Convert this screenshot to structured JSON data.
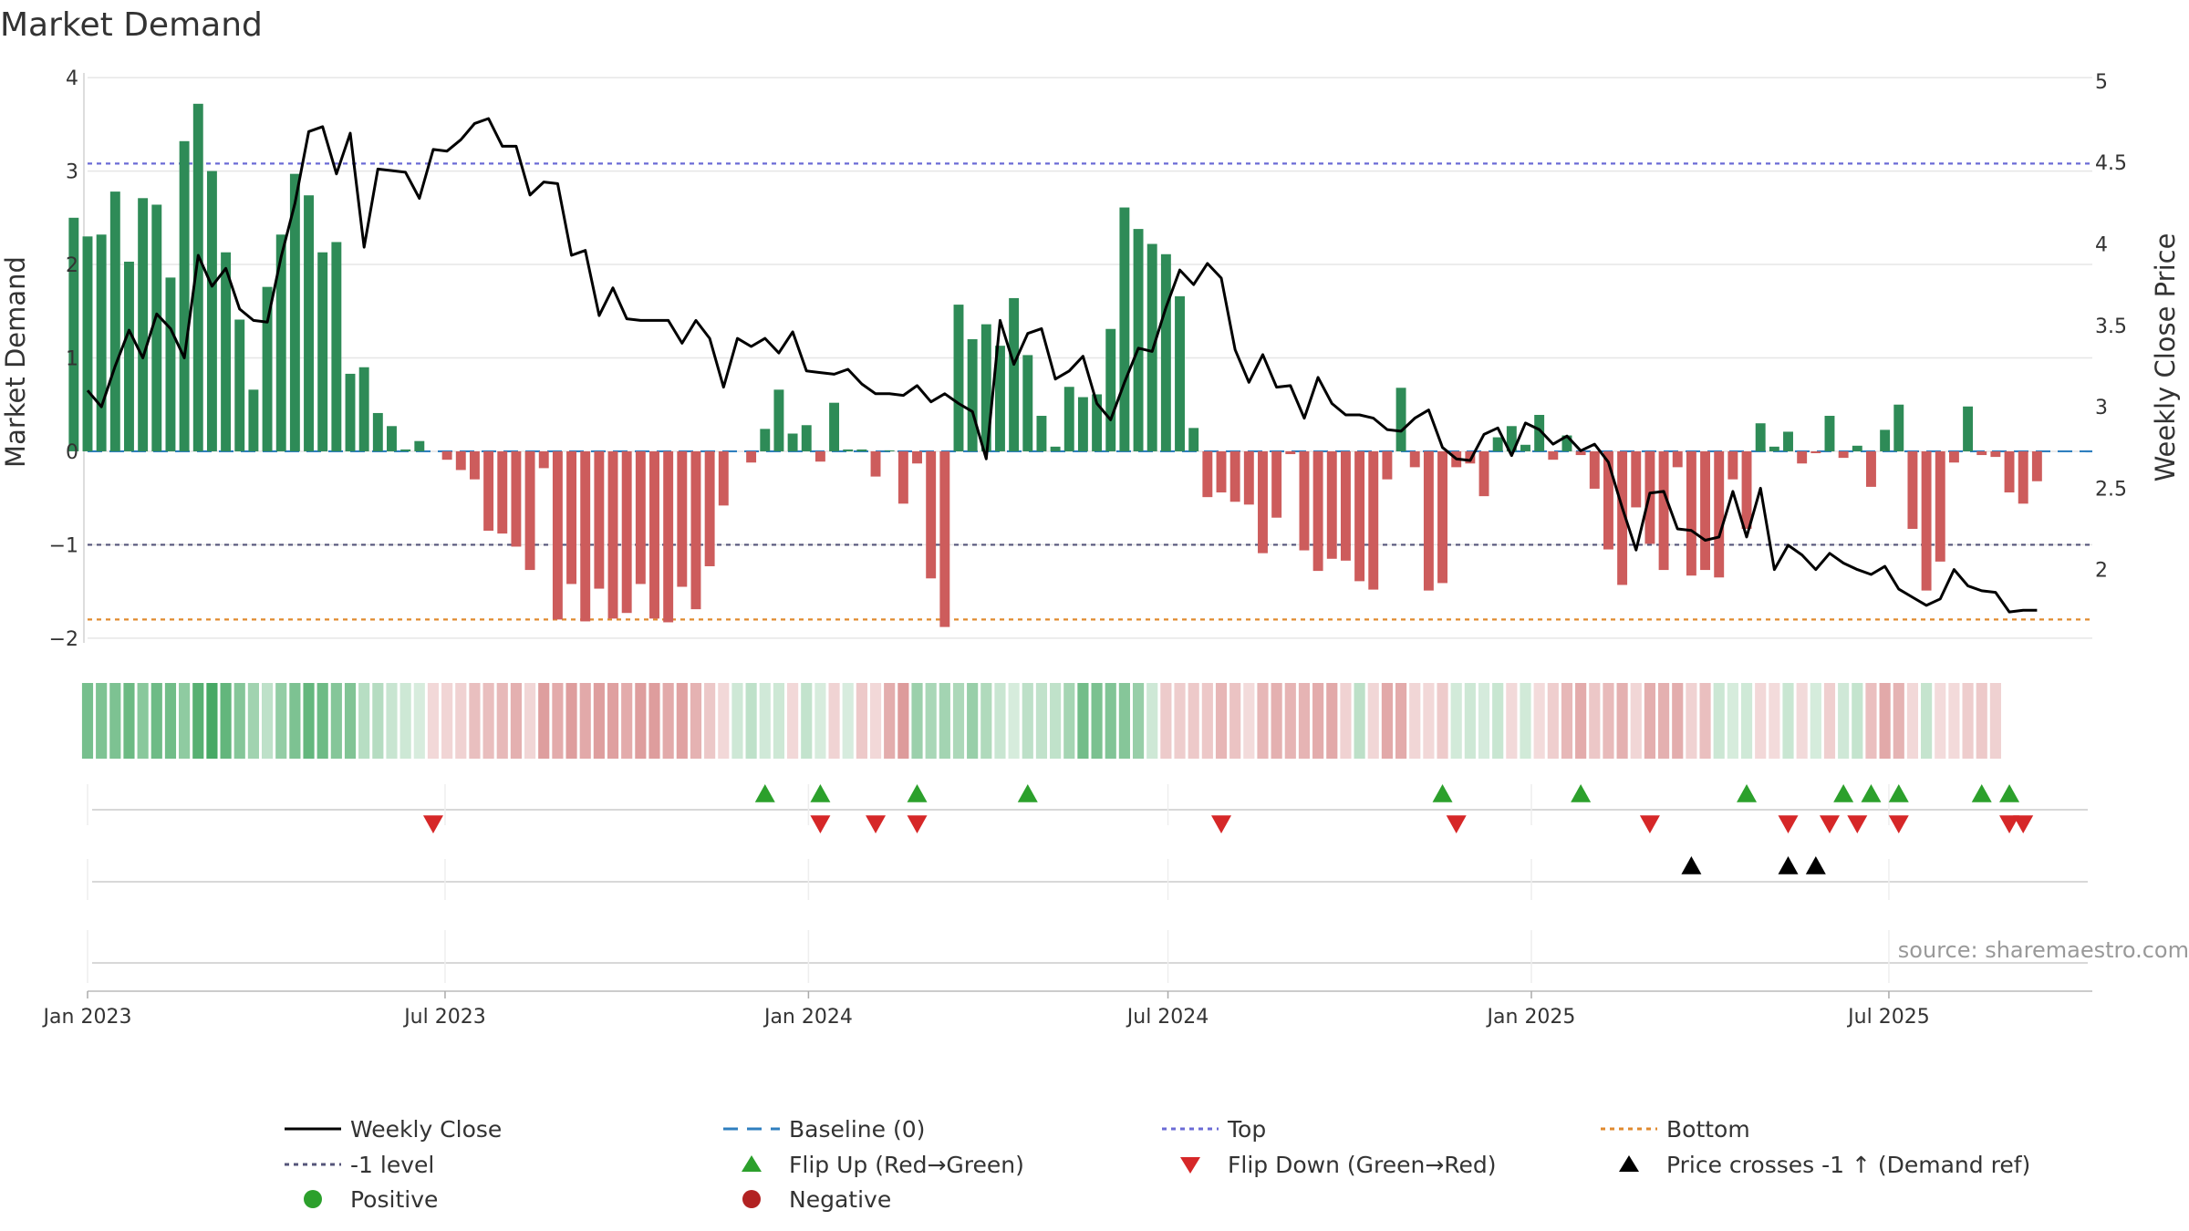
{
  "chart_data": {
    "type": "bar",
    "title": "Market Demand",
    "ylabel_left": "Market Demand",
    "ylabel_right": "Weekly Close Price",
    "left_yticks": [
      4,
      3,
      2,
      1,
      0,
      -1,
      -2
    ],
    "left_ytick_labels": [
      "4",
      "3",
      "2",
      "1",
      "0",
      "−1",
      "−2"
    ],
    "left_ylim": [
      -2.05,
      4.05
    ],
    "right_yticks": [
      5,
      4.5,
      4,
      3.5,
      3,
      2.5,
      2
    ],
    "right_ytick_labels": [
      "5",
      "4.5",
      "4",
      "3.5",
      "3",
      "2.5",
      "2"
    ],
    "right_ylim": [
      1.55,
      5.05
    ],
    "x_start": "2023-01-01",
    "x_end": "2025-10-12",
    "x_ticks": [
      {
        "date": "2023-01-01",
        "label": "Jan 2023"
      },
      {
        "date": "2023-07-01",
        "label": "Jul 2023"
      },
      {
        "date": "2024-01-01",
        "label": "Jan 2024"
      },
      {
        "date": "2024-07-01",
        "label": "Jul 2024"
      },
      {
        "date": "2025-01-01",
        "label": "Jan 2025"
      },
      {
        "date": "2025-07-01",
        "label": "Jul 2025"
      }
    ],
    "reference_lines": [
      {
        "name": "Top",
        "axis": "left",
        "value": 3.08,
        "color": "#6b6bd6"
      },
      {
        "name": "-1 level",
        "axis": "left",
        "value": -1.0,
        "color": "#55557a"
      },
      {
        "name": "Bottom",
        "axis": "left",
        "value": -1.8,
        "color": "#e08a2e"
      },
      {
        "name": "Baseline (0)",
        "axis": "left",
        "value": 0,
        "color": "#2f7fbf"
      }
    ],
    "demand_start": "2022-12-25",
    "demand_values": [
      2.5,
      2.3,
      2.32,
      2.78,
      2.03,
      2.71,
      2.64,
      1.86,
      3.32,
      3.72,
      3.0,
      2.13,
      1.41,
      0.66,
      1.76,
      2.32,
      2.97,
      2.74,
      2.13,
      2.24,
      0.83,
      0.9,
      0.41,
      0.27,
      0.02,
      0.11,
      0.0,
      -0.09,
      -0.2,
      -0.3,
      -0.85,
      -0.88,
      -1.02,
      -1.27,
      -0.18,
      -1.8,
      -1.42,
      -1.82,
      -1.47,
      -1.79,
      -1.73,
      -1.42,
      -1.79,
      -1.83,
      -1.45,
      -1.69,
      -1.23,
      -0.58,
      0.0,
      -0.12,
      0.24,
      0.66,
      0.19,
      0.28,
      -0.11,
      0.52,
      0.02,
      0.02,
      -0.27,
      0.01,
      -0.56,
      -0.13,
      -1.36,
      -1.88,
      1.57,
      1.2,
      1.36,
      1.13,
      1.64,
      1.03,
      0.38,
      0.05,
      0.69,
      0.58,
      0.61,
      1.31,
      2.61,
      2.38,
      2.22,
      2.11,
      1.66,
      0.25,
      -0.49,
      -0.44,
      -0.54,
      -0.57,
      -1.09,
      -0.71,
      -0.03,
      -1.06,
      -1.28,
      -1.15,
      -1.17,
      -1.39,
      -1.48,
      -0.3,
      0.68,
      -0.17,
      -1.49,
      -1.41,
      -0.17,
      -0.13,
      -0.48,
      0.15,
      0.27,
      0.07,
      0.39,
      -0.09,
      0.17,
      -0.04,
      -0.4,
      -1.05,
      -1.43,
      -0.6,
      -0.99,
      -1.27,
      -0.17,
      -1.33,
      -1.27,
      -1.35,
      -0.3,
      -0.83,
      0.3,
      0.05,
      0.21,
      -0.13,
      -0.02,
      0.38,
      -0.07,
      0.06,
      -0.38,
      0.23,
      0.5,
      -0.83,
      -1.49,
      -1.18,
      -0.12,
      0.48,
      -0.04,
      -0.06,
      -0.44,
      -0.56,
      -0.32
    ],
    "price_start": "2023-01-01",
    "price_values": [
      3.1,
      3.0,
      3.25,
      3.47,
      3.3,
      3.57,
      3.48,
      3.3,
      3.93,
      3.74,
      3.85,
      3.6,
      3.53,
      3.52,
      3.92,
      4.25,
      4.69,
      4.72,
      4.43,
      4.68,
      3.98,
      4.46,
      4.45,
      4.44,
      4.28,
      4.58,
      4.57,
      4.64,
      4.74,
      4.77,
      4.6,
      4.6,
      4.3,
      4.38,
      4.37,
      3.93,
      3.96,
      3.56,
      3.73,
      3.54,
      3.53,
      3.53,
      3.53,
      3.39,
      3.53,
      3.42,
      3.12,
      3.42,
      3.37,
      3.42,
      3.33,
      3.46,
      3.22,
      3.21,
      3.2,
      3.23,
      3.14,
      3.08,
      3.08,
      3.07,
      3.13,
      3.03,
      3.08,
      3.02,
      2.97,
      2.68,
      3.53,
      3.26,
      3.45,
      3.48,
      3.17,
      3.22,
      3.31,
      3.02,
      2.92,
      3.15,
      3.36,
      3.34,
      3.61,
      3.84,
      3.75,
      3.88,
      3.79,
      3.35,
      3.15,
      3.32,
      3.12,
      3.13,
      2.93,
      3.18,
      3.02,
      2.95,
      2.95,
      2.93,
      2.86,
      2.85,
      2.93,
      2.98,
      2.75,
      2.68,
      2.67,
      2.83,
      2.87,
      2.7,
      2.9,
      2.86,
      2.77,
      2.82,
      2.73,
      2.77,
      2.66,
      2.38,
      2.12,
      2.47,
      2.48,
      2.25,
      2.24,
      2.18,
      2.2,
      2.48,
      2.2,
      2.5,
      2.0,
      2.15,
      2.09,
      2.0,
      2.1,
      2.04,
      2.0,
      1.97,
      2.02,
      1.88,
      1.83,
      1.78,
      1.82,
      2.0,
      1.9,
      1.87,
      1.86,
      1.74,
      1.75,
      1.75
    ],
    "heat_start": "2023-01-01",
    "heat_values": [
      2.5,
      2.3,
      2.32,
      2.78,
      2.03,
      2.71,
      2.64,
      1.86,
      3.32,
      3.72,
      3.0,
      2.13,
      1.41,
      0.66,
      1.76,
      2.32,
      2.97,
      2.74,
      2.13,
      2.24,
      0.83,
      0.9,
      0.41,
      0.27,
      0.02,
      -0.11,
      -0.2,
      -0.3,
      -0.85,
      -0.88,
      -1.02,
      -1.27,
      -0.18,
      -1.8,
      -1.42,
      -1.82,
      -1.47,
      -1.79,
      -1.73,
      -1.42,
      -1.79,
      -1.83,
      -1.45,
      -1.69,
      -1.23,
      -0.58,
      -0.12,
      0.24,
      0.66,
      0.19,
      0.28,
      -0.11,
      0.52,
      0.02,
      -0.27,
      0.01,
      -0.56,
      -0.13,
      -1.36,
      -1.88,
      1.57,
      1.2,
      1.36,
      1.13,
      1.64,
      1.03,
      0.38,
      0.05,
      0.69,
      0.58,
      0.61,
      1.31,
      2.61,
      2.38,
      2.22,
      2.11,
      1.66,
      0.25,
      -0.49,
      -0.44,
      -0.54,
      -0.57,
      -1.09,
      -0.71,
      -0.03,
      -1.06,
      -1.28,
      -1.15,
      -1.17,
      -1.39,
      -1.48,
      -0.3,
      0.68,
      -0.17,
      -1.49,
      -1.41,
      -0.17,
      -0.13,
      -0.48,
      0.15,
      0.27,
      0.07,
      0.39,
      -0.09,
      0.17,
      -0.04,
      -0.4,
      -1.05,
      -1.43,
      -0.6,
      -0.99,
      -1.27,
      -0.17,
      -1.33,
      -1.27,
      -1.35,
      -0.3,
      -0.83,
      0.3,
      0.05,
      0.21,
      -0.13,
      -0.02,
      0.38,
      -0.07,
      0.06,
      -0.38,
      0.23,
      0.5,
      -0.83,
      -1.49,
      -1.18,
      -0.12,
      0.48,
      -0.04,
      -0.06,
      -0.44,
      -0.56,
      -0.32
    ],
    "flip_up_dates": [
      "2023-12-10",
      "2024-01-07",
      "2024-02-25",
      "2024-04-21",
      "2024-11-17",
      "2025-01-26",
      "2025-04-20",
      "2025-06-08",
      "2025-06-22",
      "2025-07-06",
      "2025-08-17",
      "2025-08-31"
    ],
    "flip_down_dates": [
      "2023-06-25",
      "2024-01-07",
      "2024-02-04",
      "2024-02-25",
      "2024-07-28",
      "2024-11-24",
      "2025-03-02",
      "2025-05-11",
      "2025-06-01",
      "2025-06-15",
      "2025-07-06",
      "2025-08-31",
      "2025-09-07"
    ],
    "price_cross_dates": [
      "2025-03-23",
      "2025-05-11",
      "2025-05-25"
    ],
    "colors": {
      "positive": "#2e8b57",
      "negative": "#cd5c5c",
      "price": "#000000",
      "flip_up": "#2ca02c",
      "flip_down": "#d62728",
      "price_cross": "#000000",
      "grid": "#e6e6e6"
    },
    "legend": [
      {
        "label": "Weekly Close",
        "marker": "line-solid",
        "color": "#000000"
      },
      {
        "label": "Baseline (0)",
        "marker": "line-dash",
        "color": "#2f7fbf"
      },
      {
        "label": "Top",
        "marker": "line-dot",
        "color": "#6b6bd6"
      },
      {
        "label": "Bottom",
        "marker": "line-dot",
        "color": "#e08a2e"
      },
      {
        "label": "-1 level",
        "marker": "line-dot",
        "color": "#55557a"
      },
      {
        "label": "Flip Up (Red→Green)",
        "marker": "triangle-up",
        "color": "#2ca02c"
      },
      {
        "label": "Flip Down (Green→Red)",
        "marker": "triangle-down",
        "color": "#d62728"
      },
      {
        "label": "Price crosses -1 ↑ (Demand ref)",
        "marker": "triangle-up",
        "color": "#000000"
      },
      {
        "label": "Positive",
        "marker": "circle",
        "color": "#2ca02c"
      },
      {
        "label": "Negative",
        "marker": "circle",
        "color": "#b22222"
      }
    ],
    "legend_position": "bottom",
    "grid": true,
    "source": "source: sharemaestro.com"
  }
}
